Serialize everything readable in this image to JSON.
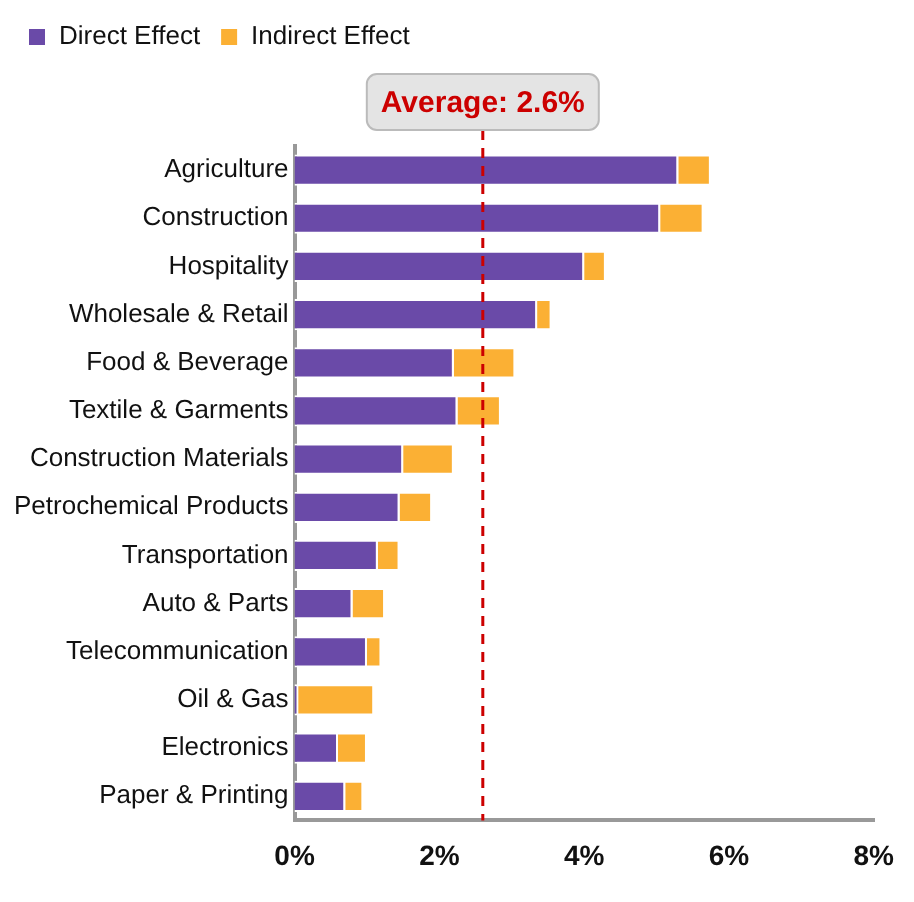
{
  "chart_data": {
    "type": "bar",
    "orientation": "horizontal",
    "stacked": true,
    "categories": [
      "Agriculture",
      "Construction",
      "Hospitality",
      "Wholesale & Retail",
      "Food & Beverage",
      "Textile & Garments",
      "Construction Materials",
      "Petrochemical Products",
      "Transportation",
      "Auto & Parts",
      "Telecommunication",
      "Oil & Gas",
      "Electronics",
      "Paper & Printing"
    ],
    "series": [
      {
        "name": "Direct Effect",
        "color": "#6a4aa8",
        "values": [
          5.3,
          5.05,
          4.0,
          3.35,
          2.2,
          2.25,
          1.5,
          1.45,
          1.15,
          0.8,
          1.0,
          0.05,
          0.6,
          0.7
        ]
      },
      {
        "name": "Indirect Effect",
        "color": "#fbb034",
        "values": [
          0.45,
          0.6,
          0.3,
          0.2,
          0.85,
          0.6,
          0.7,
          0.45,
          0.3,
          0.45,
          0.2,
          1.05,
          0.4,
          0.25
        ]
      }
    ],
    "xlim": [
      0,
      8
    ],
    "xticks": [
      {
        "value": 0,
        "label": "0%"
      },
      {
        "value": 2,
        "label": "2%"
      },
      {
        "value": 4,
        "label": "4%"
      },
      {
        "value": 6,
        "label": "6%"
      },
      {
        "value": 8,
        "label": "8%"
      }
    ],
    "ref_lines": [
      {
        "axis": "x",
        "value": 2.6,
        "label": "Average: 2.6%",
        "color": "#cc0000",
        "line_style": "dashed"
      }
    ],
    "grid": false,
    "legend": "top left"
  }
}
